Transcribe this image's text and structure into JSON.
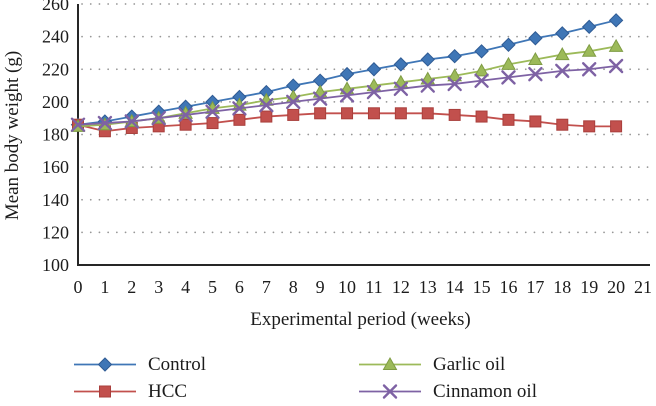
{
  "chart_data": {
    "type": "line",
    "title": "",
    "xlabel": "Experimental period (weeks)",
    "ylabel": "Mean body weight (g)",
    "x": [
      0,
      1,
      2,
      3,
      4,
      5,
      6,
      7,
      8,
      9,
      10,
      11,
      12,
      13,
      14,
      15,
      16,
      17,
      18,
      19,
      20
    ],
    "xlim": [
      0,
      21
    ],
    "ylim": [
      100,
      260
    ],
    "xticks": [
      0,
      1,
      2,
      3,
      4,
      5,
      6,
      7,
      8,
      9,
      10,
      11,
      12,
      13,
      14,
      15,
      16,
      17,
      18,
      19,
      20,
      21
    ],
    "yticks": [
      100,
      120,
      140,
      160,
      180,
      200,
      220,
      240,
      260
    ],
    "grid": "dotted-horizontal",
    "gridline_color": "#979797",
    "axis_color": "#262626",
    "legend_position": "bottom-two-columns",
    "series": [
      {
        "name": "Control",
        "marker": "diamond",
        "color": "#3f76b6",
        "edge": "#2f5b94",
        "values": [
          186,
          188,
          191,
          194,
          197,
          200,
          203,
          206,
          210,
          213,
          217,
          220,
          223,
          226,
          228,
          231,
          235,
          239,
          242,
          246,
          250
        ]
      },
      {
        "name": "HCC",
        "marker": "square",
        "color": "#c2504d",
        "edge": "#a93f3c",
        "values": [
          186,
          182,
          184,
          185,
          186,
          187,
          189,
          191,
          192,
          193,
          193,
          193,
          193,
          193,
          192,
          191,
          189,
          188,
          186,
          185,
          185
        ]
      },
      {
        "name": "Garlic oil",
        "marker": "triangle",
        "color": "#9cba59",
        "edge": "#7f9c44",
        "values": [
          185,
          186,
          188,
          190,
          193,
          196,
          198,
          201,
          203,
          206,
          208,
          210,
          212,
          214,
          216,
          219,
          223,
          226,
          229,
          231,
          234
        ]
      },
      {
        "name": "Cinnamon oil",
        "marker": "x",
        "color": "#7e62a4",
        "edge": "#6a4f8f",
        "values": [
          186,
          187,
          188,
          190,
          192,
          194,
          196,
          198,
          200,
          202,
          204,
          206,
          208,
          210,
          211,
          213,
          215,
          217,
          219,
          220,
          222
        ]
      }
    ]
  }
}
